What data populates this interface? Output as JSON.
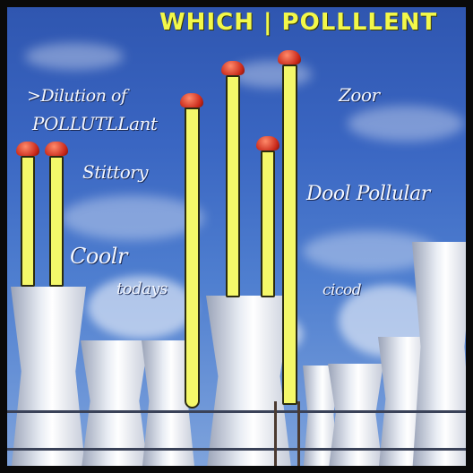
{
  "title": "WHICH | POLLLLENT",
  "labels": {
    "dilution": ">Dilution of",
    "pollutant": "POLLUTLLant",
    "stittory": "Stittory",
    "coolr": "Coolr",
    "todays": "todays",
    "zoor": "Zoor",
    "dool_pollular": "Dool Pollular",
    "cicod": "cicod"
  },
  "colors": {
    "sky": "#3a66c2",
    "pipe": "#f4f86a",
    "cap": "#c9281a",
    "title": "#f2f84a"
  }
}
